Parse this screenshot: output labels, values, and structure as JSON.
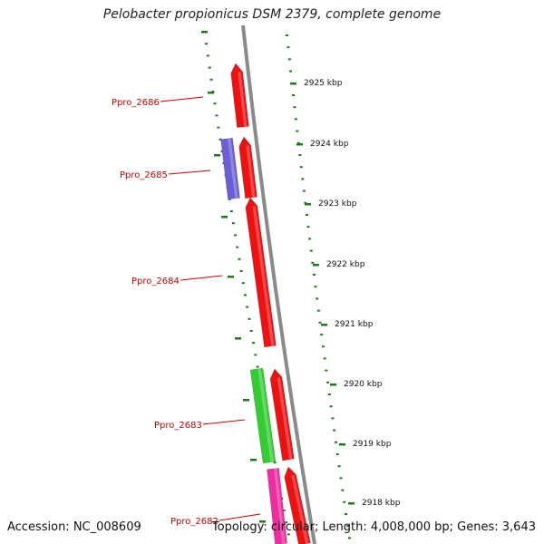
{
  "title": "Pelobacter propionicus DSM 2379, complete genome",
  "footer": {
    "accession": "Accession: NC_008609",
    "summary": "Topology: circular; Length: 4,008,000 bp; Genes: 3,643"
  },
  "colors": {
    "backbone": "#8a8a8a",
    "tick": "#1d7a1d",
    "gene_label": "#cc0000",
    "gene_red": "#ee1111",
    "gene_blue": "#6b5ed6",
    "gene_green": "#33cc33",
    "gene_pink": "#ee2ea0"
  },
  "scale_labels": [
    "2925 kbp",
    "2924 kbp",
    "2923 kbp",
    "2922 kbp",
    "2921 kbp",
    "2920 kbp",
    "2919 kbp",
    "2918 kbp"
  ],
  "genes": [
    {
      "label": "Ppro_2686",
      "color": "#ee1111",
      "strand": "forward"
    },
    {
      "label": "Ppro_2685",
      "color": "#6b5ed6",
      "strand": "reverse"
    },
    {
      "label": "",
      "color": "#ee1111",
      "strand": "forward"
    },
    {
      "label": "Ppro_2684",
      "color": "#ee1111",
      "strand": "forward"
    },
    {
      "label": "Ppro_2683",
      "color": "#33cc33",
      "strand": "reverse"
    },
    {
      "label": "",
      "color": "#ee1111",
      "strand": "forward"
    },
    {
      "label": "Ppro_2682",
      "color": "#ee2ea0",
      "strand": "reverse"
    },
    {
      "label": "",
      "color": "#ee1111",
      "strand": "forward"
    }
  ]
}
